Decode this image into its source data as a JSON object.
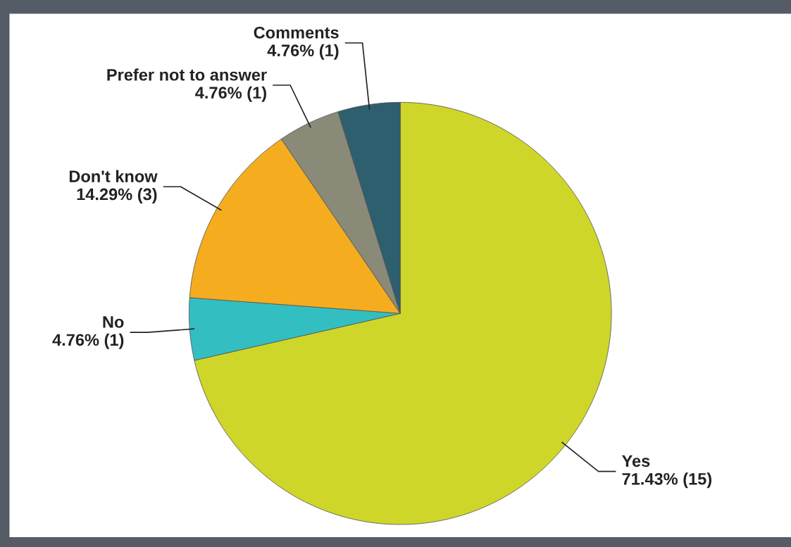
{
  "chart_data": {
    "type": "pie",
    "categories": [
      "Yes",
      "No",
      "Don't know",
      "Prefer not to answer",
      "Comments"
    ],
    "values": [
      15,
      1,
      3,
      1,
      1
    ],
    "value_labels": [
      "71.43% (15)",
      "4.76% (1)",
      "14.29% (3)",
      "4.76% (1)",
      "4.76% (1)"
    ],
    "colors": [
      "#cfd62a",
      "#33bfc1",
      "#f5ad1f",
      "#8a8a78",
      "#2d5f6e"
    ]
  }
}
